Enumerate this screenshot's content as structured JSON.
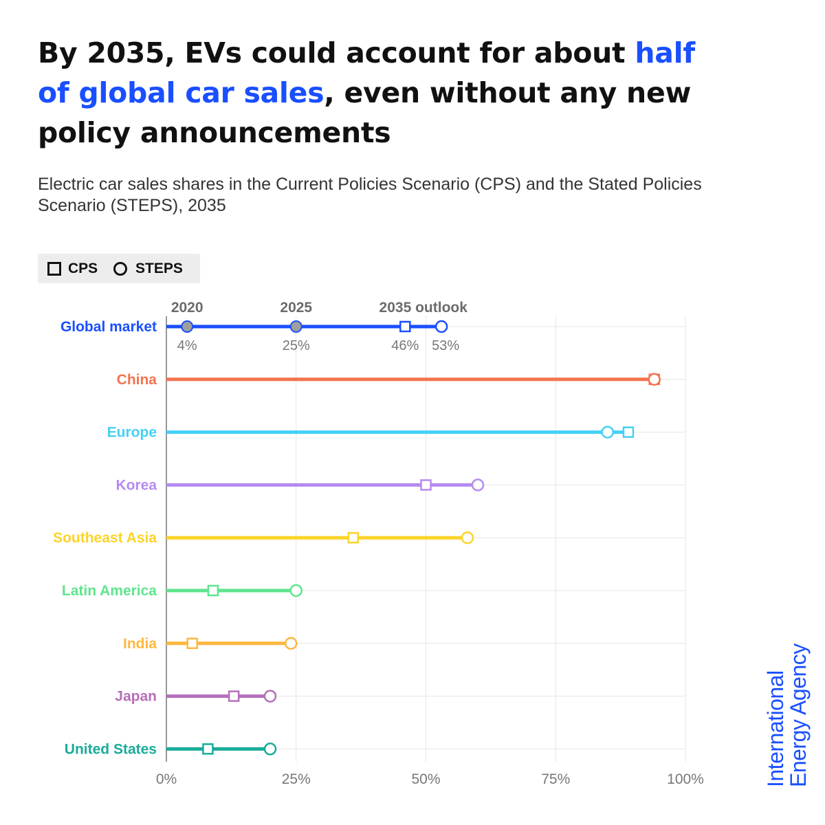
{
  "title": {
    "part1": "By 2035, EVs could account for about ",
    "highlight": "half of global car sales",
    "part2": ", even without any new policy announcements"
  },
  "subtitle": "Electric car sales shares in the Current Policies Scenario (CPS) and the Stated Policies Scenario (STEPS), 2035",
  "legend": {
    "cps": "CPS",
    "steps": "STEPS"
  },
  "brand": {
    "line1": "International",
    "line2": "Energy Agency"
  },
  "colors": {
    "accent": "#1a4fff",
    "grid": "#e6e6e6",
    "axis": "#777777",
    "history": "#9e9e9e"
  },
  "chart_data": {
    "type": "dot-range",
    "x_unit": "%",
    "xlim": [
      0,
      100
    ],
    "x_ticks": [
      "0%",
      "25%",
      "50%",
      "75%",
      "100%"
    ],
    "x_tick_values": [
      0,
      25,
      50,
      75,
      100
    ],
    "grid": true,
    "series": [
      {
        "name": "CPS",
        "marker": "square"
      },
      {
        "name": "STEPS",
        "marker": "circle"
      }
    ],
    "global": {
      "name": "Global market",
      "color": "#1a4fff",
      "history": [
        {
          "year": "2020",
          "value": 4,
          "label": "4%"
        },
        {
          "year": "2025",
          "value": 25,
          "label": "25%"
        }
      ],
      "outlook_label": "2035 outlook",
      "cps": 46,
      "cps_label": "46%",
      "steps": 53,
      "steps_label": "53%"
    },
    "regions": [
      {
        "name": "China",
        "color": "#f4734f",
        "cps": 94,
        "steps": 94
      },
      {
        "name": "Europe",
        "color": "#45d0f6",
        "cps": 89,
        "steps": 85
      },
      {
        "name": "Korea",
        "color": "#b48bf0",
        "cps": 50,
        "steps": 60
      },
      {
        "name": "Southeast Asia",
        "color": "#fcd428",
        "cps": 36,
        "steps": 58
      },
      {
        "name": "Latin America",
        "color": "#5ee58d",
        "cps": 9,
        "steps": 25
      },
      {
        "name": "India",
        "color": "#fdb740",
        "cps": 5,
        "steps": 24
      },
      {
        "name": "Japan",
        "color": "#b56fb9",
        "cps": 13,
        "steps": 20
      },
      {
        "name": "United States",
        "color": "#19ab9a",
        "cps": 8,
        "steps": 20
      }
    ]
  }
}
